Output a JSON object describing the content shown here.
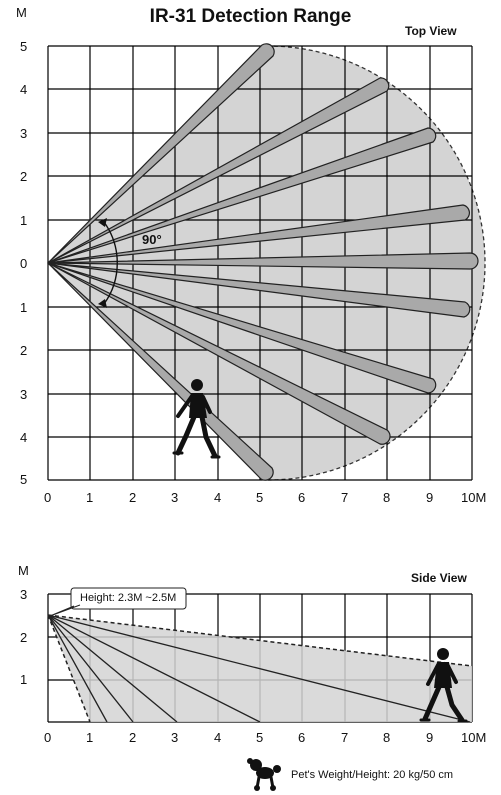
{
  "title": "IR-31 Detection Range",
  "top_view": {
    "label": "Top View",
    "y_unit": "M",
    "y_ticks": [
      "5",
      "4",
      "3",
      "2",
      "1",
      "0",
      "1",
      "2",
      "3",
      "4",
      "5"
    ],
    "x_ticks": [
      "0",
      "1",
      "2",
      "3",
      "4",
      "5",
      "6",
      "7",
      "8",
      "9",
      "10M"
    ],
    "angle_label": "90°"
  },
  "side_view": {
    "label": "Side View",
    "y_unit": "M",
    "y_ticks": [
      "3",
      "2",
      "1"
    ],
    "x_ticks": [
      "0",
      "1",
      "2",
      "3",
      "4",
      "5",
      "6",
      "7",
      "8",
      "9",
      "10M"
    ],
    "height_callout": "Height: 2.3M ~2.5M"
  },
  "pet_caption": "Pet's Weight/Height: 20 kg/50 cm",
  "colors": {
    "zone_fill": "#d4d4d4",
    "beam_fill": "#a9a9a9",
    "grid": "#000000"
  },
  "icons": [
    "walking-person-icon",
    "poodle-icon"
  ]
}
